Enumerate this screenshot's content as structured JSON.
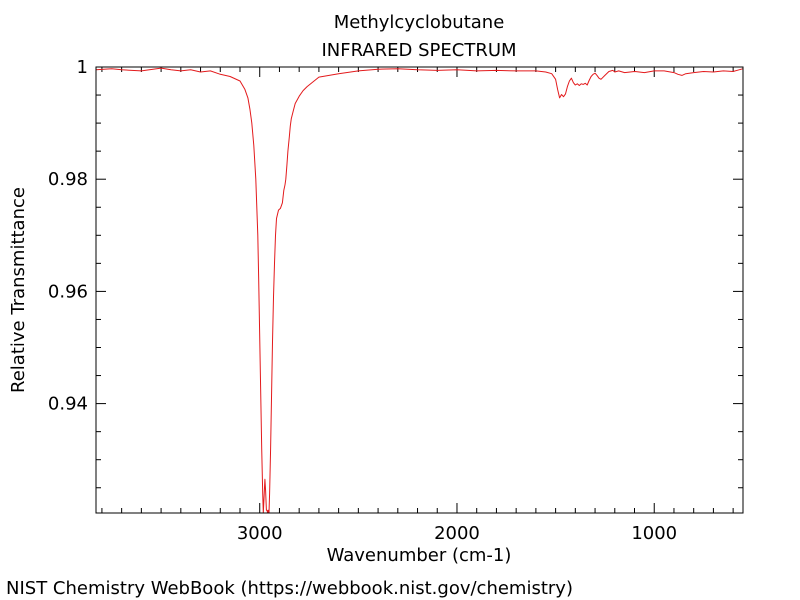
{
  "chart_data": {
    "type": "line",
    "title": "Methylcyclobutane",
    "subtitle": "INFRARED SPECTRUM",
    "xlabel": "Wavenumber (cm-1)",
    "ylabel": "Relative Transmittance",
    "xlim": [
      3830,
      550
    ],
    "ylim": [
      0.9205,
      1.0
    ],
    "x_reversed": true,
    "x_ticks": [
      3000,
      2000,
      1000
    ],
    "x_tick_labels": [
      "3000",
      "2000",
      "1000"
    ],
    "y_ticks": [
      0.94,
      0.96,
      0.98,
      1.0
    ],
    "y_tick_labels": [
      "0.94",
      "0.96",
      "0.98",
      "1"
    ],
    "grid": false,
    "line_color": "#e31a1c",
    "series": [
      {
        "x": [
          3830,
          3750,
          3700,
          3600,
          3500,
          3450,
          3400,
          3350,
          3300,
          3250,
          3200,
          3150,
          3100,
          3075,
          3060,
          3050,
          3040,
          3030,
          3020,
          3010,
          3005,
          3000,
          2995,
          2990,
          2985,
          2982,
          2978,
          2974,
          2970,
          2966,
          2963,
          2960,
          2957,
          2953,
          2950,
          2945,
          2940,
          2935,
          2930,
          2925,
          2920,
          2915,
          2905,
          2895,
          2885,
          2878,
          2872,
          2868,
          2862,
          2857,
          2850,
          2845,
          2840,
          2830,
          2820,
          2800,
          2780,
          2760,
          2700,
          2600,
          2500,
          2400,
          2300,
          2200,
          2100,
          2000,
          1900,
          1800,
          1700,
          1600,
          1550,
          1520,
          1500,
          1490,
          1480,
          1470,
          1460,
          1450,
          1440,
          1430,
          1420,
          1410,
          1400,
          1390,
          1380,
          1370,
          1360,
          1350,
          1340,
          1330,
          1320,
          1310,
          1300,
          1290,
          1280,
          1270,
          1250,
          1230,
          1210,
          1200,
          1180,
          1150,
          1100,
          1050,
          1000,
          950,
          900,
          880,
          860,
          840,
          800,
          750,
          700,
          650,
          600,
          570,
          550
        ],
        "y": [
          0.9995,
          0.9997,
          0.9995,
          0.9993,
          0.9998,
          0.9995,
          0.9993,
          0.9995,
          0.9991,
          0.9993,
          0.9987,
          0.9983,
          0.9975,
          0.996,
          0.9945,
          0.9925,
          0.99,
          0.986,
          0.98,
          0.97,
          0.962,
          0.952,
          0.942,
          0.932,
          0.924,
          0.9205,
          0.9235,
          0.9265,
          0.9245,
          0.921,
          0.921,
          0.9205,
          0.921,
          0.9205,
          0.924,
          0.932,
          0.942,
          0.951,
          0.959,
          0.965,
          0.97,
          0.973,
          0.9745,
          0.9748,
          0.9758,
          0.978,
          0.979,
          0.98,
          0.9825,
          0.985,
          0.9875,
          0.9895,
          0.9908,
          0.9922,
          0.9935,
          0.9948,
          0.9958,
          0.9965,
          0.9982,
          0.9988,
          0.9993,
          0.9996,
          0.9997,
          0.9995,
          0.9994,
          0.9995,
          0.9993,
          0.9994,
          0.9993,
          0.9993,
          0.9991,
          0.9988,
          0.9978,
          0.996,
          0.9945,
          0.9951,
          0.9947,
          0.9952,
          0.9965,
          0.9975,
          0.998,
          0.9972,
          0.9968,
          0.997,
          0.9967,
          0.997,
          0.9969,
          0.9971,
          0.9968,
          0.9976,
          0.9983,
          0.9987,
          0.9989,
          0.9985,
          0.998,
          0.9978,
          0.9985,
          0.9992,
          0.9994,
          0.9991,
          0.9993,
          0.999,
          0.9992,
          0.999,
          0.9993,
          0.9993,
          0.999,
          0.9987,
          0.9985,
          0.9988,
          0.999,
          0.9992,
          0.9991,
          0.9993,
          0.9992,
          0.9995,
          0.9997
        ]
      }
    ]
  },
  "credit": "NIST Chemistry WebBook (https://webbook.nist.gov/chemistry)"
}
